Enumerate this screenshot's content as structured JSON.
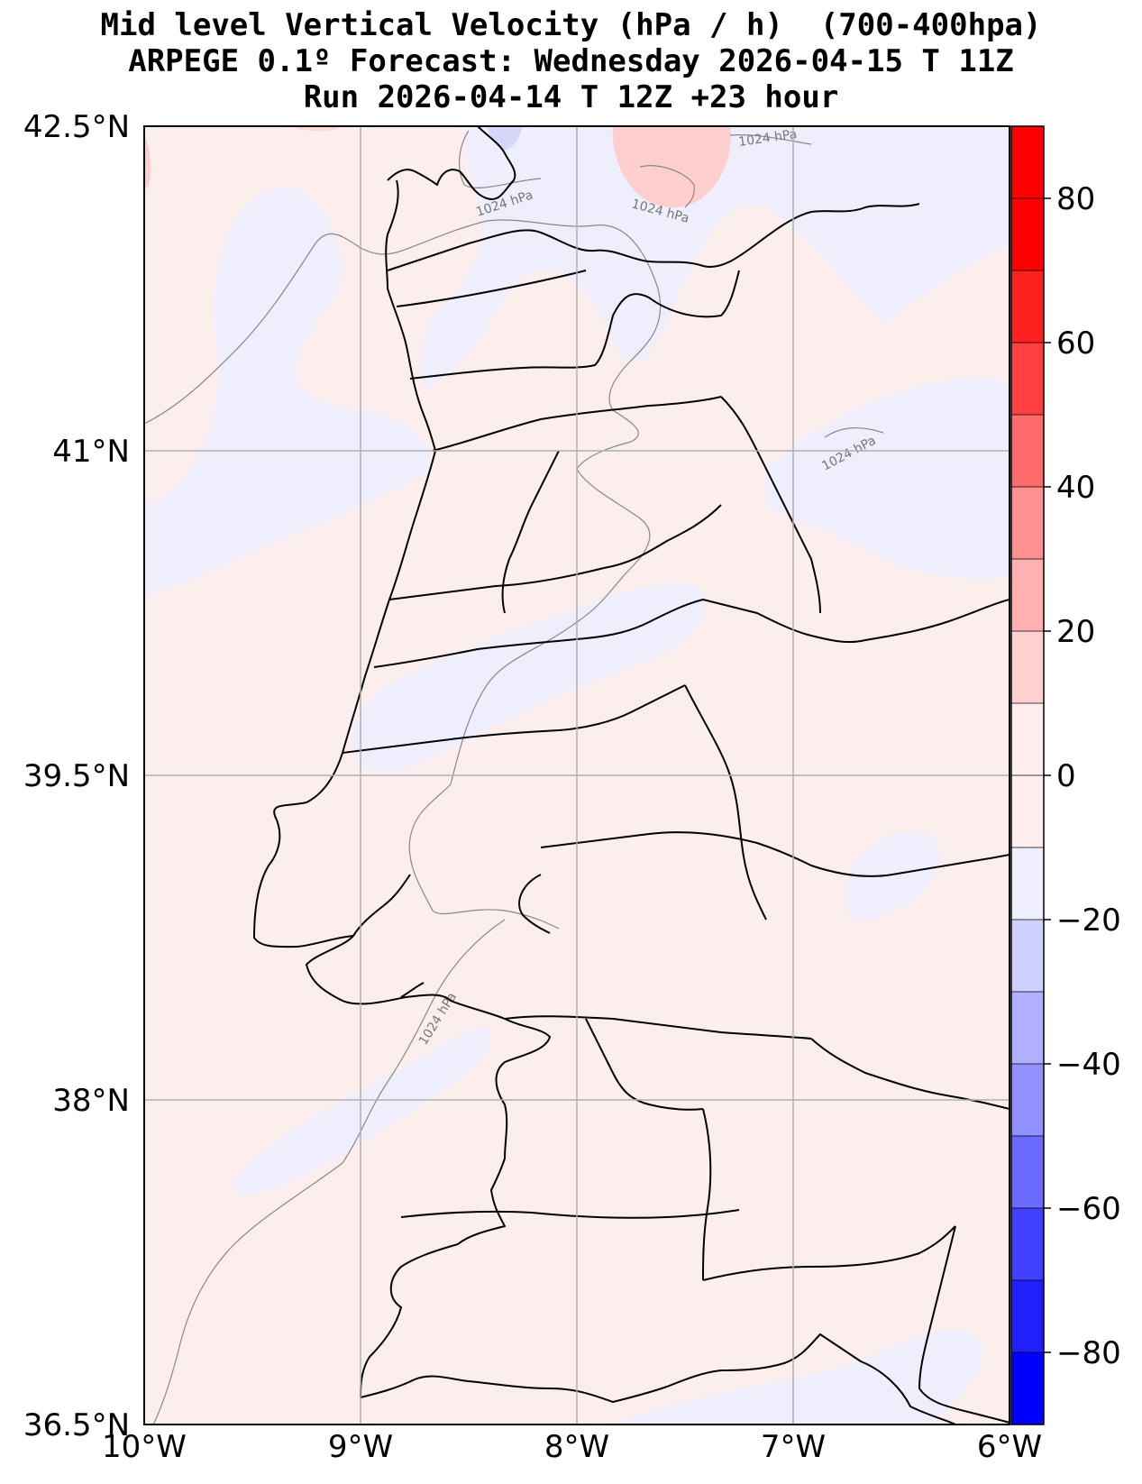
{
  "title": {
    "line1": "Mid level Vertical Velocity (hPa / h)  (700-400hpa)",
    "line2": "ARPEGE 0.1º Forecast: Wednesday 2026-04-15 T 11Z",
    "line3": "Run 2026-04-14 T 12Z +23 hour"
  },
  "map": {
    "lon_range": [
      -10,
      -6
    ],
    "lat_range": [
      36.5,
      42.5
    ],
    "lat_ticks": [
      {
        "value": 42.5,
        "label": "42.5°N"
      },
      {
        "value": 41.0,
        "label": "41°N"
      },
      {
        "value": 39.5,
        "label": "39.5°N"
      },
      {
        "value": 38.0,
        "label": "38°N"
      },
      {
        "value": 36.5,
        "label": "36.5°N"
      }
    ],
    "lon_ticks": [
      {
        "value": -10,
        "label": "10°W"
      },
      {
        "value": -9,
        "label": "9°W"
      },
      {
        "value": -8,
        "label": "8°W"
      },
      {
        "value": -7,
        "label": "7°W"
      },
      {
        "value": -6,
        "label": "6°W"
      }
    ],
    "grid": true,
    "contour_labels": [
      "1024 hPa",
      "1024 hPa",
      "1024 hPa",
      "1024 hPa",
      "1024 hPa"
    ]
  },
  "colorbar": {
    "levels": [
      -90,
      -80,
      -70,
      -60,
      -50,
      -40,
      -30,
      -20,
      -10,
      0,
      10,
      20,
      30,
      40,
      50,
      60,
      70,
      80,
      90
    ],
    "colors": [
      "#0000ff",
      "#2020ff",
      "#4040ff",
      "#6a6aff",
      "#9090ff",
      "#b0b0ff",
      "#d0d0ff",
      "#eeeeff",
      "#ffeeee",
      "#ffeeee",
      "#ffd0d0",
      "#ffb0b0",
      "#ff9090",
      "#ff6a6a",
      "#ff4040",
      "#ff2020",
      "#ff0000",
      "#ff0000"
    ],
    "ticks": [
      {
        "value": 80,
        "label": "80"
      },
      {
        "value": 60,
        "label": "60"
      },
      {
        "value": 40,
        "label": "40"
      },
      {
        "value": 20,
        "label": "20"
      },
      {
        "value": 0,
        "label": "0"
      },
      {
        "value": -20,
        "label": "−20"
      },
      {
        "value": -40,
        "label": "−40"
      },
      {
        "value": -60,
        "label": "−60"
      },
      {
        "value": -80,
        "label": "−80"
      }
    ]
  },
  "colors": {
    "background_field": "#fdeeee",
    "weak_negative": "#eeeefd",
    "weak_positive": "#ffd0d0",
    "coast": "#000000",
    "isobar": "#888888",
    "grid": "#b0b0b0"
  }
}
